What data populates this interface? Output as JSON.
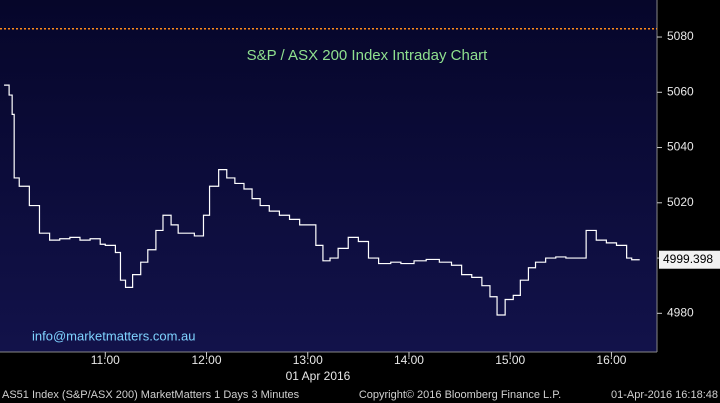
{
  "chart_data": {
    "type": "line",
    "title": "S&P / ASX 200 Index Intraday Chart",
    "annotation": "info@marketmatters.com.au",
    "x_label": "01 Apr 2016",
    "footer": {
      "left": "AS51 Index (S&P/ASX 200) MarketMatters 1 Days 3 Minutes",
      "center": "Copyright© 2016 Bloomberg Finance L.P.",
      "right": "01-Apr-2016 16:18:48"
    },
    "color": "#ffffff",
    "title_color": "#8fe08f",
    "annotation_color": "#7fd3ff",
    "reference_line": {
      "value": 5083,
      "color": "#ff8c1a"
    },
    "x": [
      10.0,
      10.05,
      10.08,
      10.1,
      10.15,
      10.25,
      10.35,
      10.45,
      10.55,
      10.65,
      10.75,
      10.85,
      10.95,
      11.0,
      11.1,
      11.15,
      11.2,
      11.27,
      11.35,
      11.42,
      11.5,
      11.57,
      11.65,
      11.72,
      11.8,
      11.88,
      11.97,
      12.03,
      12.12,
      12.2,
      12.28,
      12.37,
      12.45,
      12.53,
      12.62,
      12.72,
      12.82,
      12.92,
      13.08,
      13.15,
      13.22,
      13.3,
      13.4,
      13.5,
      13.6,
      13.7,
      13.82,
      13.92,
      14.05,
      14.17,
      14.3,
      14.42,
      14.52,
      14.62,
      14.72,
      14.8,
      14.87,
      14.95,
      15.03,
      15.1,
      15.18,
      15.25,
      15.35,
      15.45,
      15.55,
      15.65,
      15.75,
      15.85,
      15.95,
      16.05,
      16.15,
      16.2
    ],
    "values": [
      5062.6,
      5059,
      5052,
      5029,
      5026,
      5019,
      5009,
      5006.5,
      5007,
      5007.5,
      5006.5,
      5007,
      5005,
      5004.6,
      5002,
      4992,
      4989.4,
      4994,
      4998.5,
      5003,
      5010,
      5015.5,
      5012,
      5009,
      5009,
      5008,
      5015.5,
      5026,
      5032,
      5029,
      5027,
      5025,
      5021.5,
      5019,
      5017,
      5015.5,
      5014,
      5012,
      5004.6,
      4999,
      5000,
      5003.5,
      5007.5,
      5006,
      5000,
      4998,
      4998.5,
      4998,
      4999,
      4999.5,
      4998.5,
      4997.4,
      4994,
      4993,
      4990,
      4986,
      4979.4,
      4985,
      4986.5,
      4992,
      4996.5,
      4998.5,
      5000,
      5000.4,
      5000,
      5000,
      5010,
      5006.5,
      5005.5,
      5004.6,
      5000,
      4999.398
    ],
    "xlim": [
      9.96,
      16.45
    ],
    "ylim": [
      4966,
      5093.4
    ],
    "xticks": [
      {
        "value": 11,
        "label": "11:00"
      },
      {
        "value": 12,
        "label": "12:00"
      },
      {
        "value": 13,
        "label": "13:00"
      },
      {
        "value": 14,
        "label": "14:00"
      },
      {
        "value": 15,
        "label": "15:00"
      },
      {
        "value": 16,
        "label": "16:00"
      }
    ],
    "yticks": [
      4980,
      5000,
      5020,
      5040,
      5060,
      5080
    ],
    "grid": false
  }
}
